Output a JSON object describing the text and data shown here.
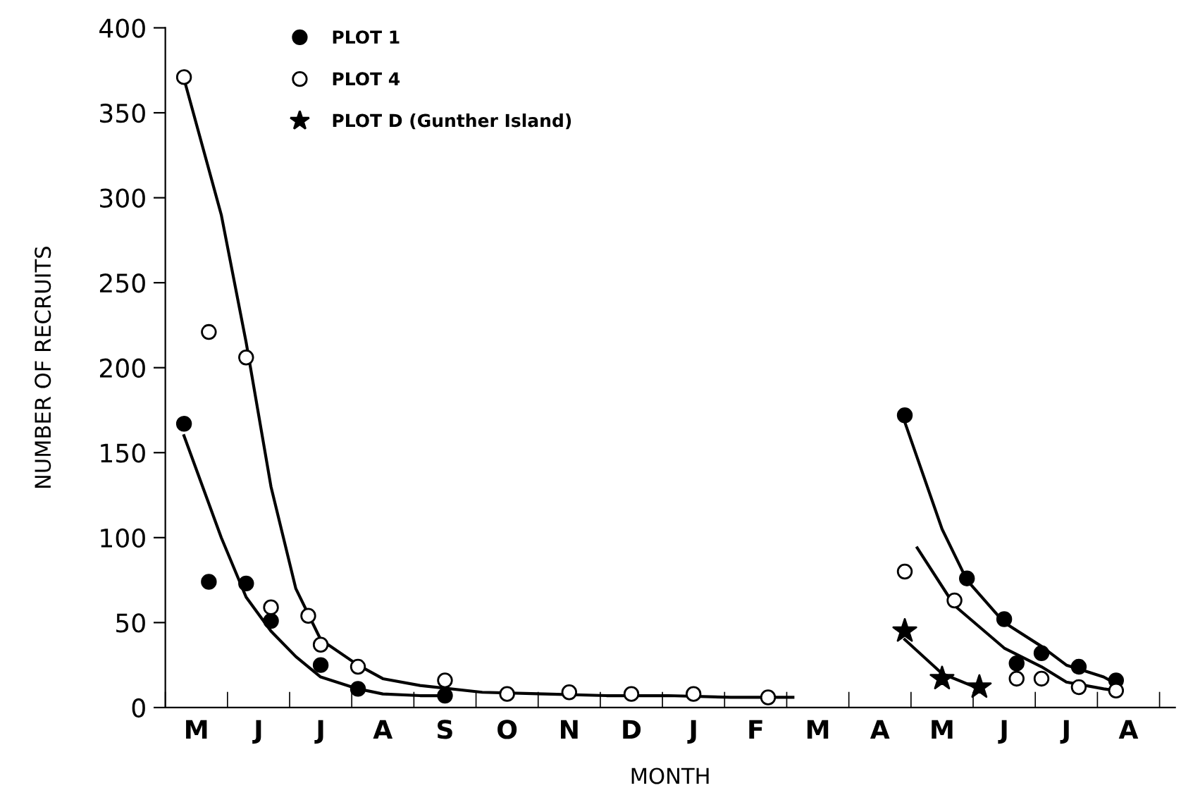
{
  "chart_data": {
    "type": "scatter",
    "xlabel": "MONTH",
    "ylabel": "NUMBER OF RECRUITS",
    "categories": [
      null,
      null,
      "M",
      null,
      null,
      null,
      null,
      "J",
      null,
      null,
      null,
      null,
      "J",
      null,
      null,
      null,
      null,
      "A",
      null,
      null,
      null,
      null,
      "S",
      null,
      null,
      null,
      null,
      "O",
      null,
      null,
      null,
      null,
      "N",
      null,
      null,
      null,
      null,
      "D",
      null,
      null,
      null,
      null,
      "J",
      null,
      null,
      null,
      null,
      "F",
      null,
      null,
      null,
      null,
      "M",
      null,
      null,
      null,
      null,
      "A",
      null,
      null,
      null,
      null,
      "M",
      null,
      null,
      null,
      null,
      "J",
      null,
      null,
      null,
      null,
      "J",
      null,
      null,
      null,
      null,
      "A",
      null,
      null
    ],
    "ylim": [
      0,
      400
    ],
    "yticks": [
      0,
      50,
      100,
      150,
      200,
      250,
      300,
      350,
      400
    ],
    "grid": false,
    "legend": "top left",
    "series": [
      {
        "name": "PLOT 1",
        "marker": "circle",
        "color": "#000000",
        "values": [
          null,
          167,
          null,
          74,
          null,
          null,
          73,
          null,
          51,
          null,
          null,
          null,
          25,
          null,
          null,
          11,
          null,
          null,
          null,
          null,
          null,
          null,
          7,
          null,
          null,
          null,
          null,
          null,
          null,
          null,
          null,
          null,
          null,
          null,
          null,
          null,
          null,
          null,
          null,
          null,
          null,
          null,
          null,
          null,
          null,
          null,
          null,
          null,
          null,
          null,
          null,
          null,
          null,
          null,
          null,
          null,
          null,
          null,
          null,
          172,
          null,
          null,
          null,
          null,
          76,
          null,
          null,
          52,
          26,
          null,
          32,
          null,
          null,
          24,
          null,
          null,
          16,
          null,
          null,
          null
        ]
      },
      {
        "name": "PLOT 4",
        "marker": "circle",
        "color": "#ffffff",
        "values": [
          null,
          371,
          null,
          221,
          null,
          null,
          206,
          null,
          59,
          null,
          null,
          54,
          37,
          null,
          null,
          24,
          null,
          null,
          null,
          null,
          null,
          null,
          16,
          null,
          null,
          null,
          null,
          8,
          null,
          null,
          null,
          null,
          9,
          null,
          null,
          null,
          null,
          8,
          null,
          null,
          null,
          null,
          8,
          null,
          null,
          null,
          null,
          null,
          6,
          null,
          null,
          null,
          null,
          null,
          null,
          null,
          null,
          null,
          null,
          80,
          null,
          null,
          null,
          63,
          null,
          null,
          null,
          null,
          17,
          null,
          17,
          null,
          null,
          12,
          null,
          null,
          10,
          null,
          null,
          null
        ]
      },
      {
        "name": "PLOT D (Gunther Island)",
        "marker": "star",
        "color": "#000000",
        "values": [
          null,
          null,
          null,
          null,
          null,
          null,
          null,
          null,
          null,
          null,
          null,
          null,
          null,
          null,
          null,
          null,
          null,
          null,
          null,
          null,
          null,
          null,
          null,
          null,
          null,
          null,
          null,
          null,
          null,
          null,
          null,
          null,
          null,
          null,
          null,
          null,
          null,
          null,
          null,
          null,
          null,
          null,
          null,
          null,
          null,
          null,
          null,
          null,
          null,
          null,
          null,
          null,
          null,
          null,
          null,
          null,
          null,
          null,
          null,
          45,
          null,
          null,
          17,
          null,
          null,
          12,
          null,
          null,
          null,
          null,
          null,
          null,
          null,
          null,
          null,
          null,
          null,
          null,
          null,
          null
        ]
      },
      {
        "type": "line",
        "color": "#000000",
        "values": [
          null,
          370,
          null,
          null,
          290,
          null,
          215,
          null,
          130,
          null,
          70,
          null,
          40,
          null,
          null,
          25,
          null,
          17,
          null,
          null,
          13,
          null,
          null,
          null,
          null,
          9,
          null,
          null,
          null,
          null,
          8,
          null,
          null,
          null,
          null,
          7,
          null,
          null,
          null,
          null,
          7,
          null,
          null,
          null,
          null,
          6,
          null,
          null,
          null,
          null,
          6,
          null,
          null,
          null,
          null,
          null,
          null,
          null,
          null,
          null,
          null,
          null,
          null,
          null,
          null,
          null,
          null,
          null,
          null,
          null,
          null,
          null,
          null,
          null,
          null,
          null,
          null,
          null,
          null,
          null
        ]
      },
      {
        "type": "line",
        "color": "#000000",
        "values": [
          null,
          160,
          null,
          null,
          100,
          null,
          65,
          null,
          45,
          null,
          30,
          null,
          18,
          null,
          null,
          11,
          null,
          8,
          null,
          null,
          7,
          null,
          7,
          null,
          null,
          null,
          null,
          null,
          null,
          null,
          null,
          null,
          null,
          null,
          null,
          null,
          null,
          null,
          null,
          null,
          null,
          null,
          null,
          null,
          null,
          null,
          null,
          null,
          null,
          null,
          null,
          null,
          null,
          null,
          null,
          null,
          null,
          null,
          null,
          null,
          null,
          null,
          null,
          null,
          null,
          null,
          null,
          null,
          null,
          null,
          null,
          null,
          null,
          null,
          null,
          null,
          null,
          null,
          null,
          null
        ]
      },
      {
        "type": "line",
        "color": "#000000",
        "values": [
          null,
          null,
          null,
          null,
          null,
          null,
          null,
          null,
          null,
          null,
          null,
          null,
          null,
          null,
          null,
          null,
          null,
          null,
          null,
          null,
          null,
          null,
          null,
          null,
          null,
          null,
          null,
          null,
          null,
          null,
          null,
          null,
          null,
          null,
          null,
          null,
          null,
          null,
          null,
          null,
          null,
          null,
          null,
          null,
          null,
          null,
          null,
          null,
          null,
          null,
          null,
          null,
          null,
          null,
          null,
          null,
          null,
          null,
          null,
          168,
          null,
          null,
          105,
          null,
          75,
          null,
          null,
          50,
          null,
          null,
          36,
          null,
          25,
          null,
          null,
          18,
          14,
          null,
          null,
          null
        ]
      },
      {
        "type": "line",
        "color": "#000000",
        "values": [
          null,
          null,
          null,
          null,
          null,
          null,
          null,
          null,
          null,
          null,
          null,
          null,
          null,
          null,
          null,
          null,
          null,
          null,
          null,
          null,
          null,
          null,
          null,
          null,
          null,
          null,
          null,
          null,
          null,
          null,
          null,
          null,
          null,
          null,
          null,
          null,
          null,
          null,
          null,
          null,
          null,
          null,
          null,
          null,
          null,
          null,
          null,
          null,
          null,
          null,
          null,
          null,
          null,
          null,
          null,
          null,
          null,
          null,
          null,
          null,
          94,
          null,
          null,
          60,
          null,
          null,
          null,
          35,
          null,
          null,
          24,
          null,
          15,
          null,
          null,
          11,
          10,
          null,
          null,
          null
        ]
      },
      {
        "type": "line",
        "color": "#000000",
        "values": [
          null,
          null,
          null,
          null,
          null,
          null,
          null,
          null,
          null,
          null,
          null,
          null,
          null,
          null,
          null,
          null,
          null,
          null,
          null,
          null,
          null,
          null,
          null,
          null,
          null,
          null,
          null,
          null,
          null,
          null,
          null,
          null,
          null,
          null,
          null,
          null,
          null,
          null,
          null,
          null,
          null,
          null,
          null,
          null,
          null,
          null,
          null,
          null,
          null,
          null,
          null,
          null,
          null,
          null,
          null,
          null,
          null,
          null,
          null,
          40,
          null,
          null,
          20,
          null,
          null,
          11,
          null,
          null,
          null,
          null,
          null,
          null,
          null,
          null,
          null,
          null,
          null,
          null,
          null,
          null
        ]
      }
    ]
  }
}
